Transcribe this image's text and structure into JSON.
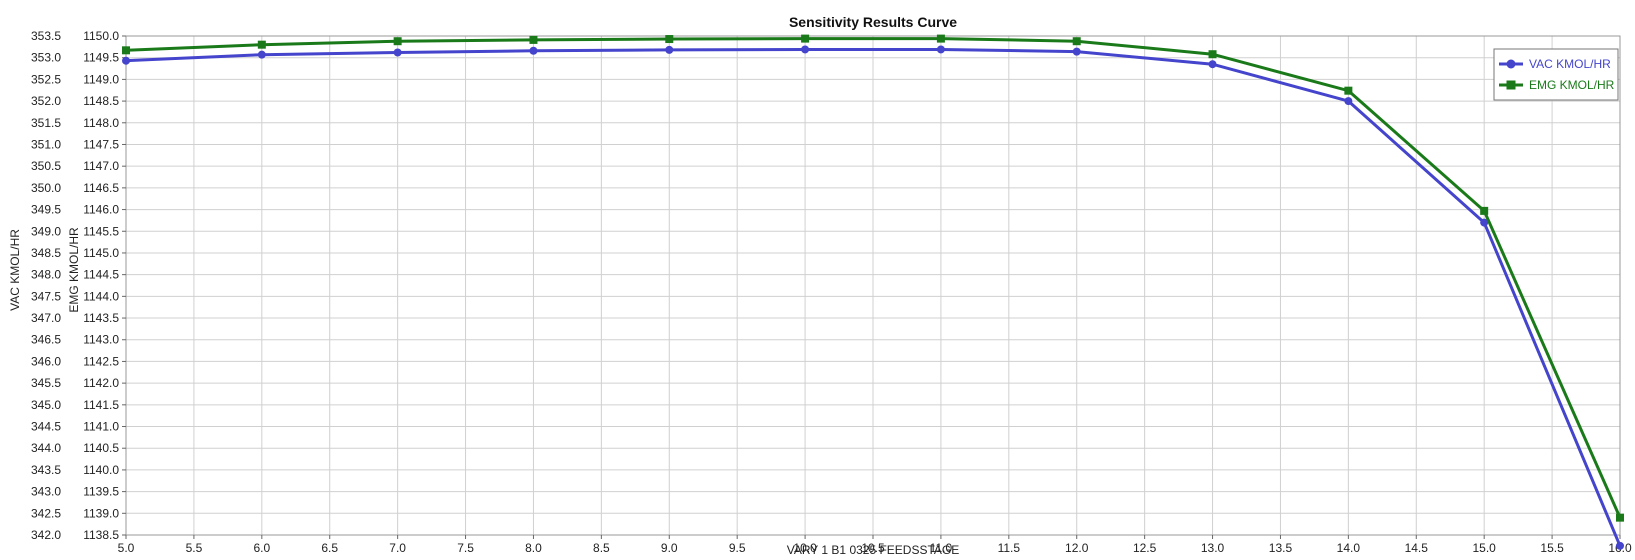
{
  "chart_data": {
    "type": "line",
    "title": "Sensitivity Results Curve",
    "xlabel": "VARY   1 B1 0325 FEEDSSTAGE",
    "ylabel_left_outer": "VAC KMOL/HR",
    "ylabel_left_inner": "EMG KMOL/HR",
    "x": [
      5,
      6,
      7,
      8,
      9,
      10,
      11,
      12,
      13,
      14,
      15,
      16
    ],
    "xlim": [
      5.0,
      16.0
    ],
    "xticks": [
      "5.0",
      "5.5",
      "6.0",
      "6.5",
      "7.0",
      "7.5",
      "8.0",
      "8.5",
      "9.0",
      "9.5",
      "10.0",
      "10.5",
      "11.0",
      "11.5",
      "12.0",
      "12.5",
      "13.0",
      "13.5",
      "14.0",
      "14.5",
      "15.0",
      "15.5",
      "16.0"
    ],
    "y_axes": [
      {
        "name": "VAC KMOL/HR",
        "lim": [
          342.0,
          353.5
        ],
        "ticks": [
          "353.5",
          "353.0",
          "352.5",
          "352.0",
          "351.5",
          "351.0",
          "350.5",
          "350.0",
          "349.5",
          "349.0",
          "348.5",
          "348.0",
          "347.5",
          "347.0",
          "346.5",
          "346.0",
          "345.5",
          "345.0",
          "344.5",
          "344.0",
          "343.5",
          "343.0",
          "342.5",
          "342.0"
        ]
      },
      {
        "name": "EMG KMOL/HR",
        "lim": [
          1138.5,
          1150.0
        ],
        "ticks": [
          "1150.0",
          "1149.5",
          "1149.0",
          "1148.5",
          "1148.0",
          "1147.5",
          "1147.0",
          "1146.5",
          "1146.0",
          "1145.5",
          "1145.0",
          "1144.5",
          "1144.0",
          "1143.5",
          "1143.0",
          "1142.5",
          "1142.0",
          "1141.5",
          "1141.0",
          "1140.5",
          "1140.0",
          "1139.5",
          "1139.0",
          "1138.5"
        ]
      }
    ],
    "series": [
      {
        "name": "VAC KMOL/HR",
        "axis": 0,
        "marker": "circle",
        "color": "#4444cc",
        "values": [
          352.93,
          353.07,
          353.12,
          353.16,
          353.18,
          353.19,
          353.19,
          353.14,
          352.85,
          352.0,
          349.2,
          341.75
        ]
      },
      {
        "name": "EMG KMOL/HR",
        "axis": 1,
        "marker": "square",
        "color": "#1a7a1a",
        "values": [
          1149.67,
          1149.8,
          1149.88,
          1149.91,
          1149.93,
          1149.94,
          1149.94,
          1149.88,
          1149.58,
          1148.74,
          1145.97,
          1138.9
        ]
      }
    ],
    "grid": true,
    "legend_position": "top-right"
  }
}
